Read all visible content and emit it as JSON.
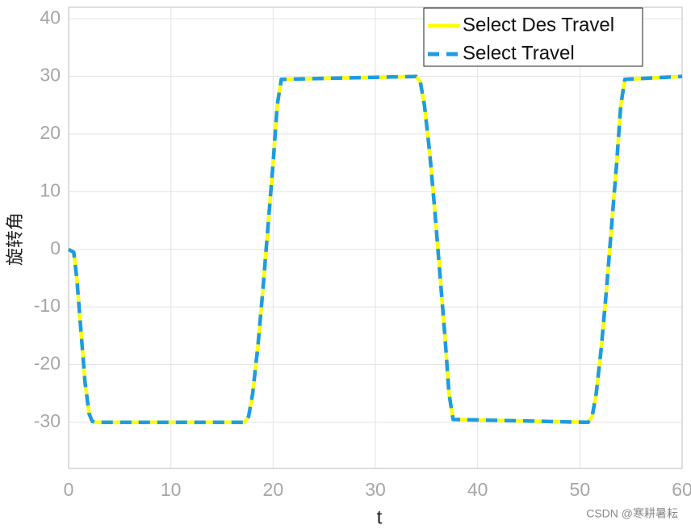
{
  "chart_data": {
    "type": "line",
    "x_label": "t",
    "y_label": "旋转角",
    "x": [
      0,
      0.5,
      0.8,
      1.2,
      1.6,
      2.0,
      2.3,
      2.6,
      17.2,
      17.6,
      18.0,
      18.5,
      19.0,
      19.5,
      20.0,
      20.4,
      20.8,
      34.0,
      34.4,
      34.8,
      35.3,
      35.8,
      36.3,
      36.8,
      37.2,
      37.6,
      50.8,
      51.2,
      51.6,
      52.1,
      52.6,
      53.1,
      53.6,
      54.0,
      54.4,
      60
    ],
    "series": [
      {
        "name": "Select Des Travel",
        "color": "#ffff00",
        "dashed": false,
        "values": [
          0,
          -0.5,
          -5,
          -14,
          -23,
          -28.5,
          -29.8,
          -30,
          -30,
          -29,
          -25,
          -17,
          -7,
          4,
          15,
          25,
          29.5,
          30,
          29,
          25,
          17,
          7,
          -4,
          -15,
          -25,
          -29.5,
          -30,
          -29,
          -25,
          -17,
          -7,
          4,
          15,
          25,
          29.5,
          30
        ]
      },
      {
        "name": "Select Travel",
        "color": "#1e9be6",
        "dashed": true,
        "values": [
          0,
          -0.5,
          -5,
          -14,
          -23,
          -28.5,
          -29.8,
          -30,
          -30,
          -29,
          -25,
          -17,
          -7,
          4,
          15,
          25,
          29.5,
          30,
          29,
          25,
          17,
          7,
          -4,
          -15,
          -25,
          -29.5,
          -30,
          -29,
          -25,
          -17,
          -7,
          4,
          15,
          25,
          29.5,
          30
        ]
      }
    ],
    "xlim": [
      0,
      60
    ],
    "xticks": [
      0,
      10,
      20,
      30,
      40,
      50,
      60
    ],
    "ylim": [
      -38,
      42
    ],
    "yticks": [
      -30,
      -20,
      -10,
      0,
      10,
      20,
      30,
      40
    ],
    "grid": true,
    "legend": "northeast",
    "watermark": "CSDN @寒耕暑耘"
  }
}
